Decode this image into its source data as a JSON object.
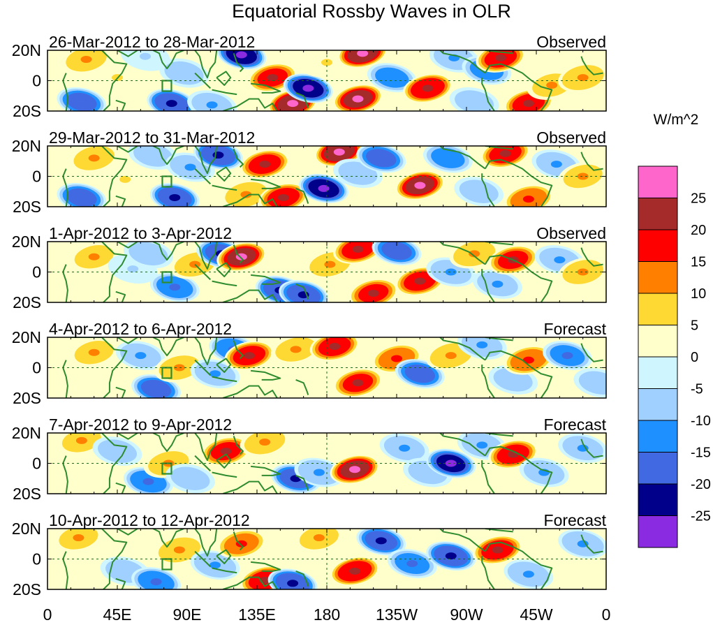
{
  "chart_data": {
    "type": "heatmap",
    "title": "Equatorial Rossby Waves in OLR",
    "units": "W/m^2",
    "x_ticks": [
      "0",
      "45E",
      "90E",
      "135E",
      "180",
      "135W",
      "90W",
      "45W",
      "0"
    ],
    "y_ticks": [
      "20N",
      "0",
      "20S"
    ],
    "x_range_deg": [
      0,
      360
    ],
    "y_range_deg": [
      -20,
      20
    ],
    "colorbar": {
      "levels": [
        "25",
        "20",
        "15",
        "10",
        "5",
        "0",
        "-5",
        "-10",
        "-15",
        "-20",
        "-25"
      ],
      "colors": [
        "#ff66cc",
        "#a52a2a",
        "#ff0000",
        "#ff7f00",
        "#ffd933",
        "#ffffcc",
        "#cff5ff",
        "#a0d0ff",
        "#1e90ff",
        "#4169e1",
        "#00008b",
        "#8a2be2"
      ]
    },
    "panels": [
      {
        "period": "26-Mar-2012 to 28-Mar-2012",
        "status": "Observed",
        "anomalies": [
          [
            22,
            -14,
            -20
          ],
          [
            25,
            14,
            12
          ],
          [
            45,
            2,
            8
          ],
          [
            63,
            16,
            -8
          ],
          [
            80,
            -15,
            -24
          ],
          [
            88,
            5,
            -10
          ],
          [
            106,
            -16,
            -12
          ],
          [
            125,
            17,
            -28
          ],
          [
            145,
            2,
            20
          ],
          [
            158,
            -15,
            28
          ],
          [
            168,
            -5,
            -28
          ],
          [
            180,
            12,
            8
          ],
          [
            203,
            18,
            28
          ],
          [
            200,
            -12,
            26
          ],
          [
            222,
            2,
            -15
          ],
          [
            245,
            -5,
            24
          ],
          [
            262,
            15,
            -12
          ],
          [
            275,
            -14,
            -10
          ],
          [
            283,
            7,
            -15
          ],
          [
            292,
            15,
            22
          ],
          [
            310,
            -15,
            22
          ],
          [
            325,
            -3,
            10
          ],
          [
            345,
            2,
            14
          ]
        ]
      },
      {
        "period": "29-Mar-2012 to 31-Mar-2012",
        "status": "Observed",
        "anomalies": [
          [
            22,
            -14,
            -20
          ],
          [
            30,
            12,
            12
          ],
          [
            50,
            -2,
            8
          ],
          [
            68,
            14,
            -10
          ],
          [
            82,
            -14,
            -24
          ],
          [
            92,
            6,
            -12
          ],
          [
            110,
            14,
            -24
          ],
          [
            128,
            -12,
            14
          ],
          [
            140,
            8,
            22
          ],
          [
            152,
            -14,
            22
          ],
          [
            178,
            -8,
            -28
          ],
          [
            188,
            16,
            28
          ],
          [
            200,
            2,
            -10
          ],
          [
            215,
            12,
            -20
          ],
          [
            240,
            -6,
            26
          ],
          [
            258,
            12,
            -15
          ],
          [
            278,
            -10,
            -10
          ],
          [
            295,
            15,
            22
          ],
          [
            310,
            -15,
            18
          ],
          [
            328,
            8,
            -12
          ],
          [
            345,
            0,
            10
          ]
        ]
      },
      {
        "period": "1-Apr-2012 to 3-Apr-2012",
        "status": "Observed",
        "anomalies": [
          [
            30,
            10,
            10
          ],
          [
            55,
            2,
            -8
          ],
          [
            65,
            12,
            -10
          ],
          [
            82,
            -10,
            -18
          ],
          [
            95,
            5,
            12
          ],
          [
            112,
            12,
            -22
          ],
          [
            125,
            10,
            26
          ],
          [
            150,
            -12,
            -24
          ],
          [
            165,
            -15,
            -24
          ],
          [
            182,
            5,
            12
          ],
          [
            200,
            15,
            22
          ],
          [
            210,
            -14,
            20
          ],
          [
            225,
            14,
            -20
          ],
          [
            240,
            -6,
            22
          ],
          [
            260,
            0,
            -12
          ],
          [
            275,
            12,
            14
          ],
          [
            290,
            -8,
            -12
          ],
          [
            300,
            8,
            20
          ],
          [
            330,
            8,
            -12
          ],
          [
            345,
            0,
            12
          ]
        ]
      },
      {
        "period": "4-Apr-2012 to 6-Apr-2012",
        "status": "Forecast",
        "anomalies": [
          [
            30,
            10,
            10
          ],
          [
            60,
            8,
            -12
          ],
          [
            70,
            -14,
            -20
          ],
          [
            85,
            0,
            12
          ],
          [
            108,
            -4,
            -12
          ],
          [
            120,
            12,
            -18
          ],
          [
            130,
            8,
            22
          ],
          [
            160,
            12,
            12
          ],
          [
            185,
            14,
            22
          ],
          [
            200,
            -10,
            20
          ],
          [
            225,
            6,
            18
          ],
          [
            240,
            -4,
            -20
          ],
          [
            260,
            8,
            14
          ],
          [
            280,
            15,
            -12
          ],
          [
            300,
            -8,
            -10
          ],
          [
            310,
            5,
            18
          ],
          [
            335,
            8,
            -16
          ],
          [
            355,
            -10,
            -10
          ]
        ]
      },
      {
        "period": "7-Apr-2012 to 9-Apr-2012",
        "status": "Forecast",
        "anomalies": [
          [
            22,
            15,
            10
          ],
          [
            45,
            8,
            -10
          ],
          [
            65,
            -12,
            -18
          ],
          [
            78,
            0,
            12
          ],
          [
            92,
            -10,
            -10
          ],
          [
            115,
            8,
            20
          ],
          [
            140,
            14,
            12
          ],
          [
            160,
            -10,
            -22
          ],
          [
            175,
            -6,
            -14
          ],
          [
            198,
            -4,
            26
          ],
          [
            230,
            10,
            -12
          ],
          [
            245,
            -6,
            -10
          ],
          [
            260,
            0,
            -26
          ],
          [
            280,
            12,
            -12
          ],
          [
            300,
            6,
            22
          ],
          [
            320,
            -6,
            -12
          ],
          [
            345,
            10,
            -12
          ]
        ]
      },
      {
        "period": "10-Apr-2012 to 12-Apr-2012",
        "status": "Forecast",
        "anomalies": [
          [
            20,
            14,
            10
          ],
          [
            50,
            -8,
            -10
          ],
          [
            70,
            -15,
            -18
          ],
          [
            85,
            6,
            14
          ],
          [
            108,
            -4,
            -14
          ],
          [
            125,
            10,
            16
          ],
          [
            140,
            -14,
            22
          ],
          [
            158,
            -16,
            -24
          ],
          [
            175,
            14,
            10
          ],
          [
            198,
            -8,
            24
          ],
          [
            215,
            12,
            -22
          ],
          [
            235,
            -3,
            -16
          ],
          [
            260,
            2,
            -24
          ],
          [
            290,
            6,
            22
          ],
          [
            310,
            -10,
            -14
          ],
          [
            345,
            10,
            -14
          ]
        ]
      }
    ]
  }
}
